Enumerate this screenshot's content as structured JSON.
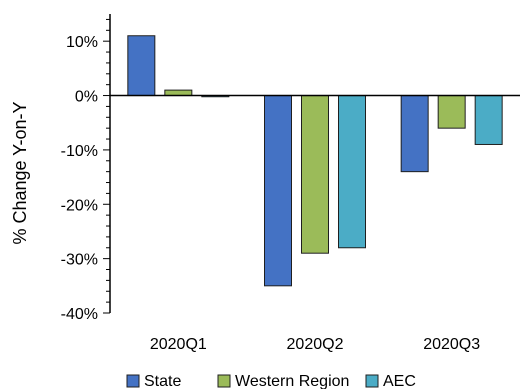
{
  "chart_data": {
    "type": "bar",
    "categories": [
      "2020Q1",
      "2020Q2",
      "2020Q3"
    ],
    "series": [
      {
        "name": "State",
        "values": [
          11,
          -35,
          -14
        ],
        "color": "#4472C4"
      },
      {
        "name": "Western Region",
        "values": [
          1,
          -29,
          -6
        ],
        "color": "#9BBB59"
      },
      {
        "name": "AEC",
        "values": [
          0,
          -28,
          -9
        ],
        "color": "#4BACC6"
      }
    ],
    "title": "",
    "xlabel": "",
    "ylabel": "% Change Y-on-Y",
    "ylim": [
      -40,
      15
    ],
    "y_ticks": [
      10,
      0,
      -10,
      -20,
      -30,
      -40
    ],
    "y_tick_labels": [
      "10%",
      "0%",
      "-10%",
      "-20%",
      "-30%",
      "-40%"
    ],
    "grid": false,
    "legend_position": "bottom"
  }
}
